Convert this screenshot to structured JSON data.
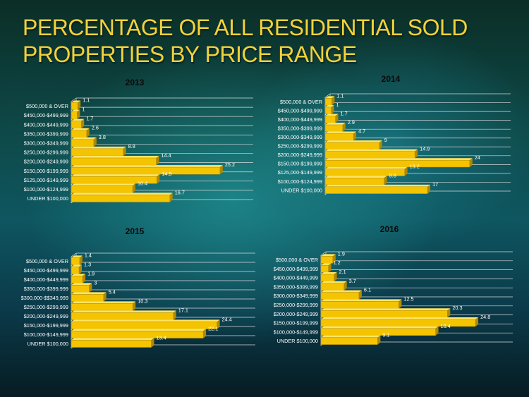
{
  "slide": {
    "title": "PERCENTAGE OF ALL RESIDENTIAL SOLD PROPERTIES BY PRICE RANGE"
  },
  "colors": {
    "title": "#f2d23a",
    "bar": "#f5c400",
    "bar_dark": "#b08900",
    "bar_top": "#ffe566",
    "axis": "#d8d8d8"
  },
  "chart_data": [
    {
      "type": "bar",
      "orientation": "horizontal",
      "title": "2013",
      "categories": [
        "$500,000 & OVER",
        "$450,000-$499,999",
        "$400,000-$449,999",
        "$350,000-$399,999",
        "$300,000-$349,999",
        "$250,000-$299,999",
        "$200,000-$249,999",
        "$150,000-$199,999",
        "$125,000-$149,999",
        "$100,000-$124,999",
        "UNDER $100,000"
      ],
      "values": [
        1.1,
        1,
        1.7,
        2.6,
        3.8,
        8.8,
        14.4,
        25.2,
        14.5,
        10.4,
        16.7
      ],
      "xlim": [
        0,
        30
      ],
      "grid": true,
      "legend": false
    },
    {
      "type": "bar",
      "orientation": "horizontal",
      "title": "2014",
      "categories": [
        "$500,000 & OVER",
        "$450,000-$499,999",
        "$400,000-$449,999",
        "$350,000-$399,999",
        "$300,000-$349,999",
        "$250,000-$299,999",
        "$200,000-$249,999",
        "$150,000-$199,999",
        "$125,000-$149,999",
        "$100,000-$124,999",
        "UNDER $100,000"
      ],
      "values": [
        1.1,
        1,
        1.7,
        2.9,
        4.7,
        9,
        14.9,
        24,
        13.2,
        9.8,
        17
      ],
      "xlim": [
        0,
        30
      ],
      "grid": true,
      "legend": false
    },
    {
      "type": "bar",
      "orientation": "horizontal",
      "title": "2015",
      "categories": [
        "$500,000 & OVER",
        "$450,000-$499,999",
        "$400,000-$449,999",
        "$350,000-$399,999",
        "$300,000-$$349,999",
        "$250,000-$299,999",
        "$200,000-$249,999",
        "$150,000-$199,999",
        "$100,000-$149,999",
        "UNDER $100,000"
      ],
      "values": [
        1.4,
        1.3,
        1.9,
        3,
        5.4,
        10.3,
        17.1,
        24.4,
        22.1,
        13.4
      ],
      "xlim": [
        0,
        30
      ],
      "grid": true,
      "legend": false
    },
    {
      "type": "bar",
      "orientation": "horizontal",
      "title": "2016",
      "categories": [
        "$500,000 & OVER",
        "$450,000-$499,999",
        "$400,000-$449,999",
        "$350,000-$399,999",
        "$300,000-$349,999",
        "$250,000-$299,999",
        "$200,000-$249,999",
        "$150,000-$199,999",
        "$100,000-$149,999",
        "UNDER $100,000"
      ],
      "values": [
        1.9,
        1.2,
        2.1,
        3.7,
        6.1,
        12.5,
        20.3,
        24.8,
        18.4,
        9.1
      ],
      "xlim": [
        0,
        30
      ],
      "grid": true,
      "legend": false
    }
  ]
}
